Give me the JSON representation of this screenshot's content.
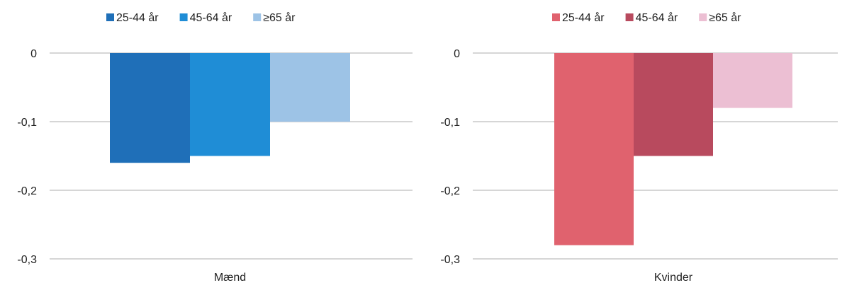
{
  "chart_data": [
    {
      "type": "bar",
      "categories": [
        "Mænd"
      ],
      "series": [
        {
          "name": "25-44 år",
          "values": [
            -0.16
          ],
          "color": "#1f6fb8"
        },
        {
          "name": "45-64 år",
          "values": [
            -0.15
          ],
          "color": "#1f8dd6"
        },
        {
          "name": "≥65 år",
          "values": [
            -0.1
          ],
          "color": "#9dc3e6"
        }
      ],
      "yticks": [
        0,
        -0.1,
        -0.2,
        -0.3
      ],
      "ytick_labels": [
        "0",
        "-0,1",
        "-0,2",
        "-0,3"
      ],
      "ylim": [
        -0.3,
        0
      ],
      "legend_position": "top",
      "grid": true
    },
    {
      "type": "bar",
      "categories": [
        "Kvinder"
      ],
      "series": [
        {
          "name": "25-44 år",
          "values": [
            -0.28
          ],
          "color": "#e0626e"
        },
        {
          "name": "45-64 år",
          "values": [
            -0.15
          ],
          "color": "#b84a5e"
        },
        {
          "name": "≥65 år",
          "values": [
            -0.08
          ],
          "color": "#ecbfd3"
        }
      ],
      "yticks": [
        0,
        -0.1,
        -0.2,
        -0.3
      ],
      "ytick_labels": [
        "0",
        "-0,1",
        "-0,2",
        "-0,3"
      ],
      "ylim": [
        -0.3,
        0
      ],
      "legend_position": "top",
      "grid": true
    }
  ]
}
